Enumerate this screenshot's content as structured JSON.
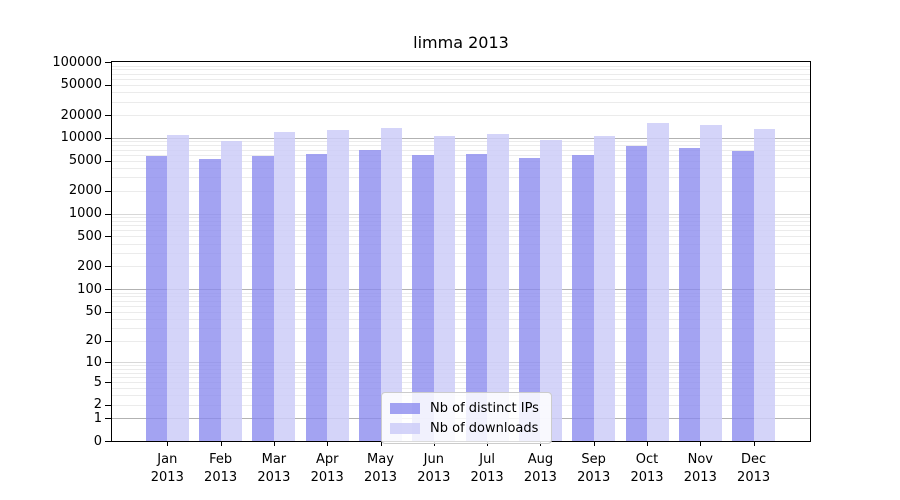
{
  "title": "limma 2013",
  "chart_data": {
    "type": "bar",
    "title": "limma 2013",
    "categories": [
      "Jan",
      "Feb",
      "Mar",
      "Apr",
      "May",
      "Jun",
      "Jul",
      "Aug",
      "Sep",
      "Oct",
      "Nov",
      "Dec"
    ],
    "x_tick_second_line": "2013",
    "series": [
      {
        "name": "Nb of distinct IPs",
        "color": "rgba(137,137,238,0.78)",
        "values": [
          5800,
          5300,
          5800,
          6200,
          7000,
          6000,
          6100,
          5500,
          6000,
          7900,
          7400,
          6800
        ]
      },
      {
        "name": "Nb of downloads",
        "color": "rgba(205,205,248,0.85)",
        "values": [
          10900,
          9100,
          11800,
          12600,
          13600,
          10500,
          11300,
          9300,
          10700,
          15600,
          14600,
          12900
        ]
      }
    ],
    "xlabel": "",
    "ylabel": "",
    "yscale": "log(1+x)",
    "ylim": [
      0,
      100000
    ],
    "y_tick_labels": [
      0,
      1,
      2,
      5,
      10,
      20,
      50,
      100,
      200,
      500,
      1000,
      2000,
      5000,
      10000,
      20000,
      50000,
      100000
    ],
    "grid": true,
    "legend_position": "bottom-center"
  },
  "colors": {
    "grid_minor": "#ebebeb",
    "grid_decade": "#d8d8d8",
    "grid_decade_emphasis": "#b2b2b2",
    "axis": "#000000",
    "background": "#ffffff"
  }
}
